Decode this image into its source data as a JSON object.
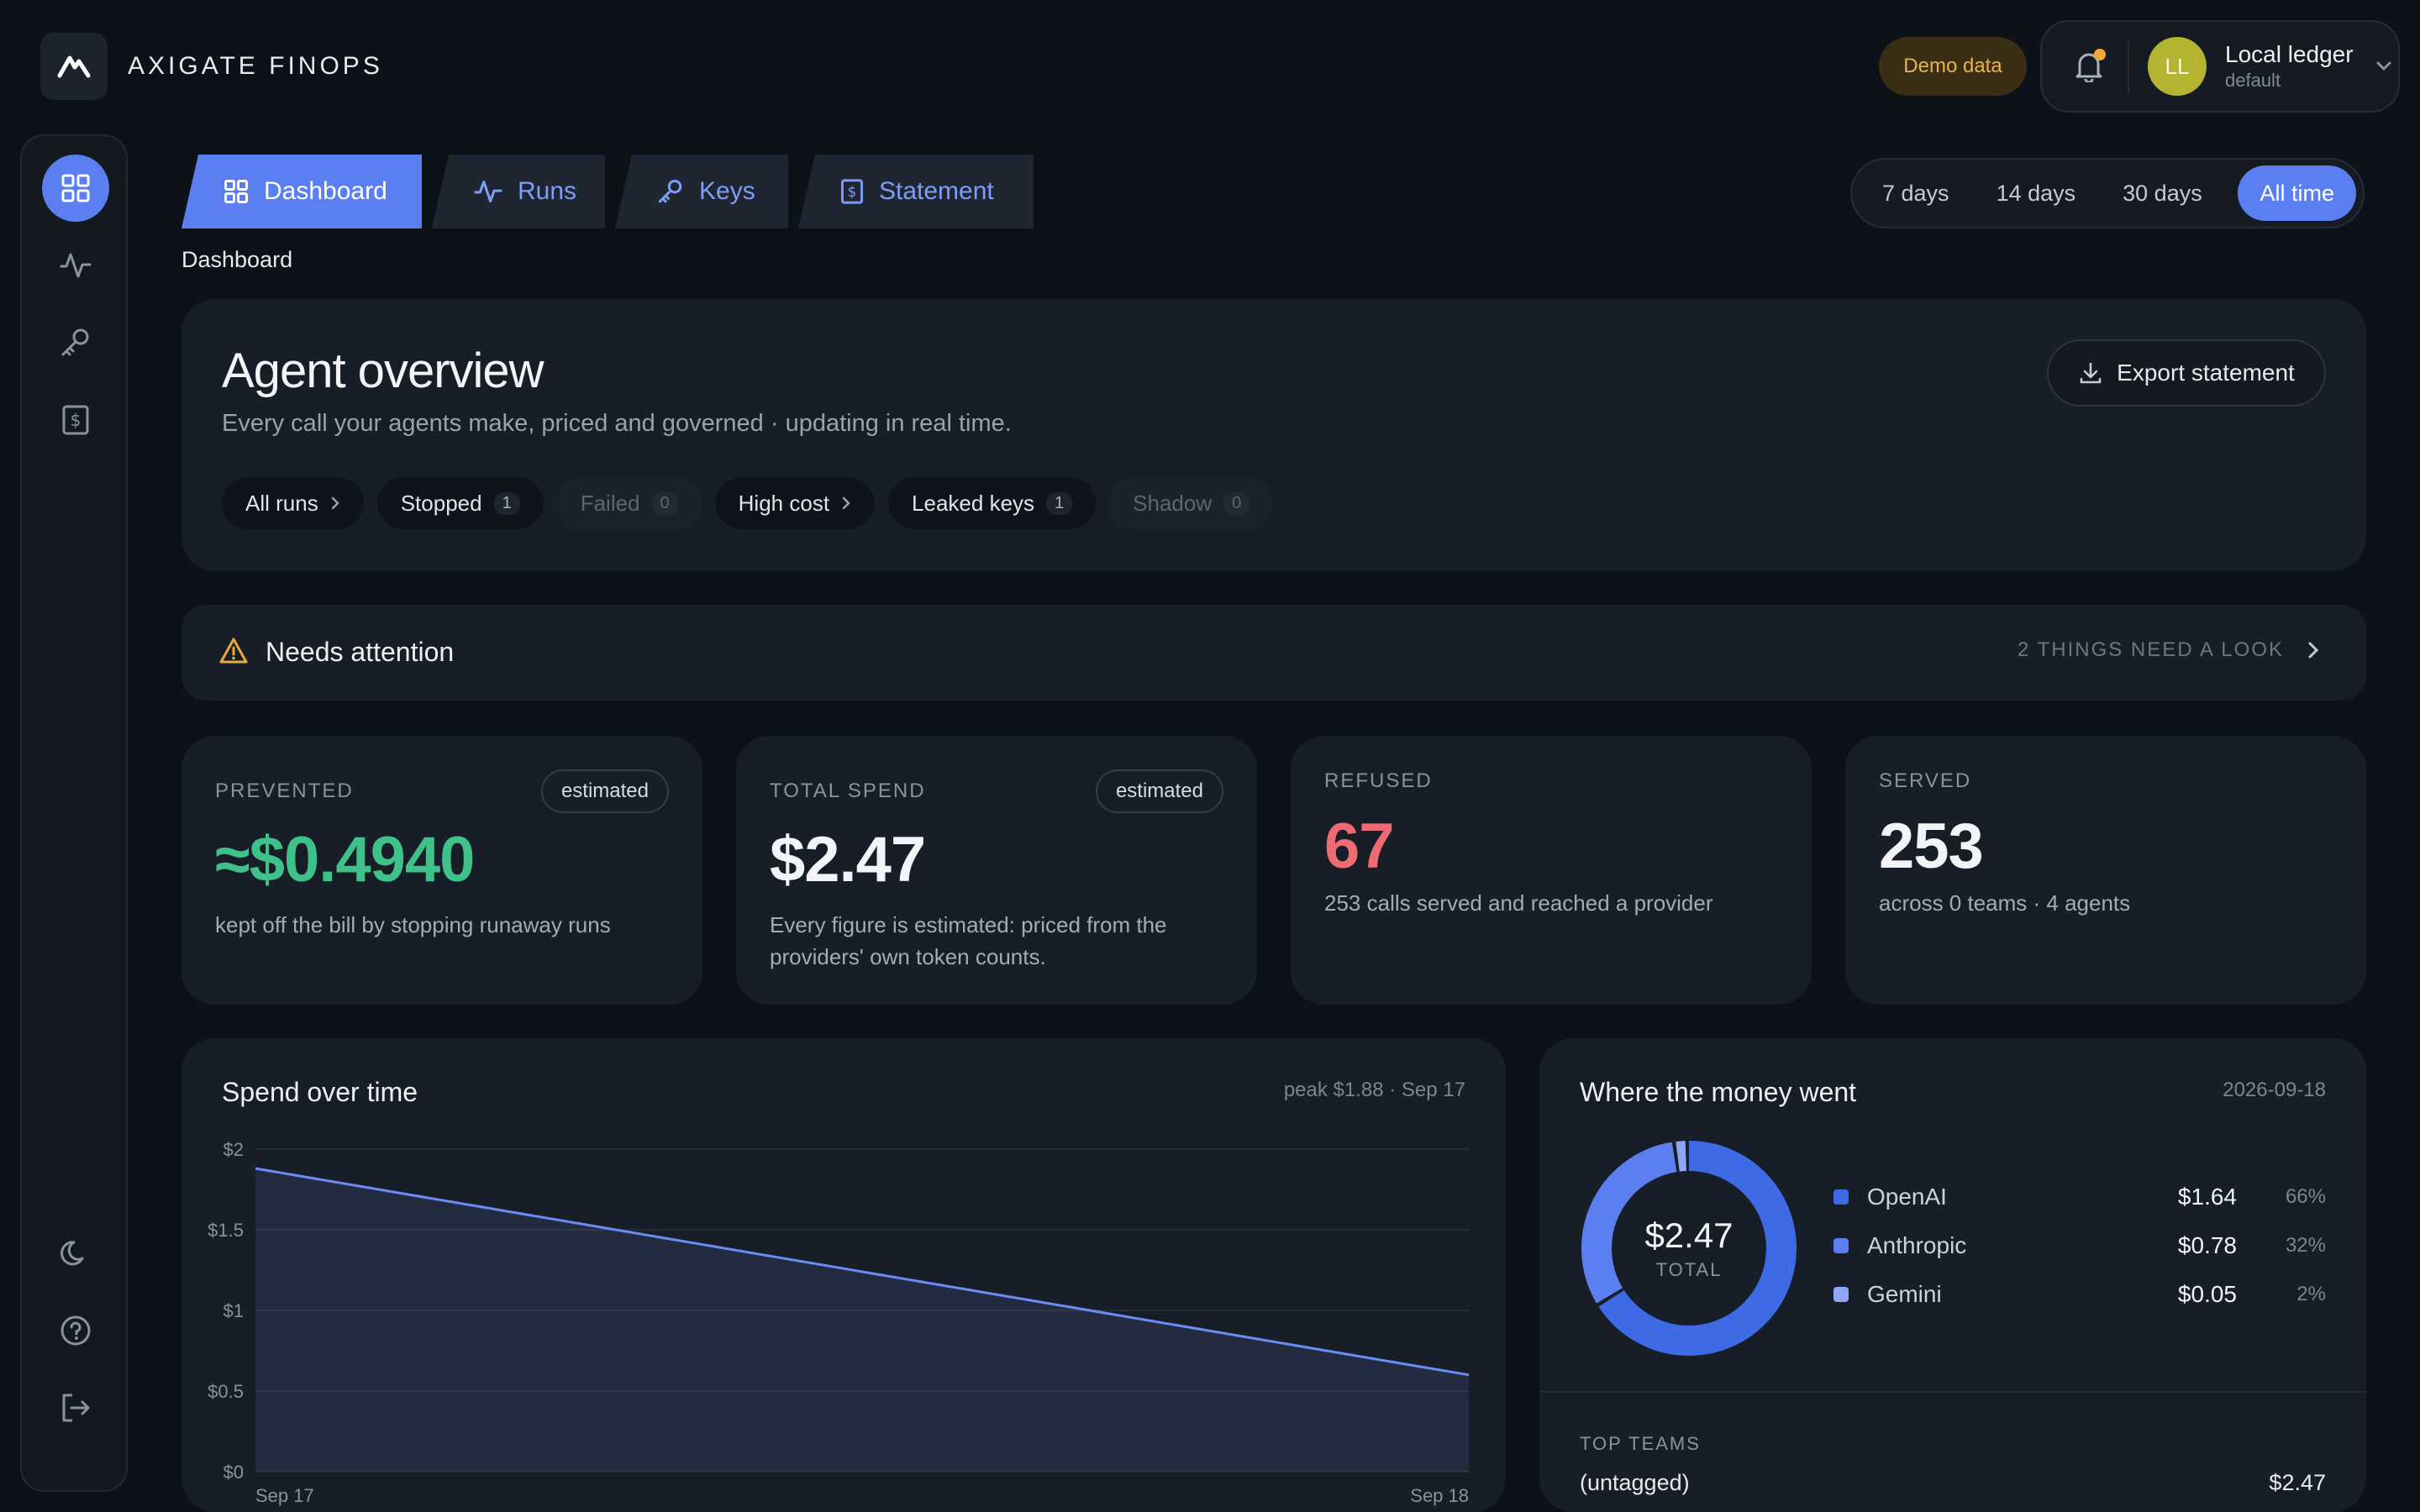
{
  "brand": {
    "name": "AXIGATE FINOPS"
  },
  "header": {
    "demo_badge": "Demo data",
    "user": {
      "initials": "LL",
      "name": "Local ledger",
      "subtitle": "default"
    }
  },
  "sidebar": {
    "items": [
      {
        "name": "dashboard",
        "icon": "grid-icon",
        "active": true
      },
      {
        "name": "runs",
        "icon": "pulse-icon"
      },
      {
        "name": "keys",
        "icon": "key-icon"
      },
      {
        "name": "statement",
        "icon": "receipt-icon"
      }
    ],
    "bottom": [
      {
        "name": "theme",
        "icon": "moon-icon"
      },
      {
        "name": "help",
        "icon": "help-icon"
      },
      {
        "name": "logout",
        "icon": "logout-icon"
      }
    ]
  },
  "tabs": [
    {
      "label": "Dashboard",
      "icon": "grid-icon",
      "active": true
    },
    {
      "label": "Runs",
      "icon": "pulse-icon"
    },
    {
      "label": "Keys",
      "icon": "key-icon"
    },
    {
      "label": "Statement",
      "icon": "receipt-icon"
    }
  ],
  "breadcrumb": "Dashboard",
  "ranges": [
    {
      "label": "7 days"
    },
    {
      "label": "14 days"
    },
    {
      "label": "30 days"
    },
    {
      "label": "All time",
      "active": true
    }
  ],
  "overview": {
    "title": "Agent overview",
    "subtitle": "Every call your agents make, priced and governed · updating in real time.",
    "export_label": "Export statement",
    "chips": [
      {
        "label": "All runs",
        "type": "chevron"
      },
      {
        "label": "Stopped",
        "count": "1"
      },
      {
        "label": "Failed",
        "count": "0",
        "dim": true
      },
      {
        "label": "High cost",
        "type": "chevron"
      },
      {
        "label": "Leaked keys",
        "count": "1"
      },
      {
        "label": "Shadow",
        "count": "0",
        "dim": true
      }
    ]
  },
  "attention": {
    "title": "Needs attention",
    "summary": "2 THINGS NEED A LOOK"
  },
  "stats": {
    "prevented": {
      "label": "PREVENTED",
      "badge": "estimated",
      "value": "≈$0.4940",
      "desc": "kept off the bill by stopping runaway runs",
      "color": "#3fc28a"
    },
    "total": {
      "label": "TOTAL SPEND",
      "badge": "estimated",
      "value": "$2.47",
      "desc": "Every figure is estimated: priced from the providers' own token counts."
    },
    "refused": {
      "label": "REFUSED",
      "value": "67",
      "desc": "253 calls served and reached a provider",
      "color": "#ef6b73"
    },
    "served": {
      "label": "SERVED",
      "value": "253",
      "desc": "across 0 teams · 4 agents"
    }
  },
  "spend_chart": {
    "title": "Spend over time",
    "meta": "peak $1.88 · Sep 17"
  },
  "chart_data": {
    "type": "area",
    "x": [
      "Sep 17",
      "Sep 18"
    ],
    "series": [
      {
        "values": [
          1.88,
          0.6
        ]
      }
    ],
    "ytick_labels": [
      "$0",
      "$0.5",
      "$1",
      "$1.5",
      "$2"
    ],
    "ytick_values": [
      0,
      0.5,
      1,
      1.5,
      2
    ],
    "xtick_labels": [
      "Sep 17",
      "Sep 18"
    ],
    "ylim": [
      0,
      2
    ],
    "grid": true,
    "color": "#6b8cf2"
  },
  "money": {
    "title": "Where the money went",
    "date": "2026-09-18",
    "total_value": "$2.47",
    "total_label": "TOTAL",
    "providers": [
      {
        "name": "OpenAI",
        "amount": "$1.64",
        "pct": "66%",
        "share": 66.4,
        "color": "#3f6ae6"
      },
      {
        "name": "Anthropic",
        "amount": "$0.78",
        "pct": "32%",
        "share": 31.6,
        "color": "#5b7ff0"
      },
      {
        "name": "Gemini",
        "amount": "$0.05",
        "pct": "2%",
        "share": 2.0,
        "color": "#8ea6f5"
      }
    ],
    "teams_label": "TOP TEAMS",
    "teams": [
      {
        "name": "(untagged)",
        "amount": "$2.47"
      }
    ]
  }
}
